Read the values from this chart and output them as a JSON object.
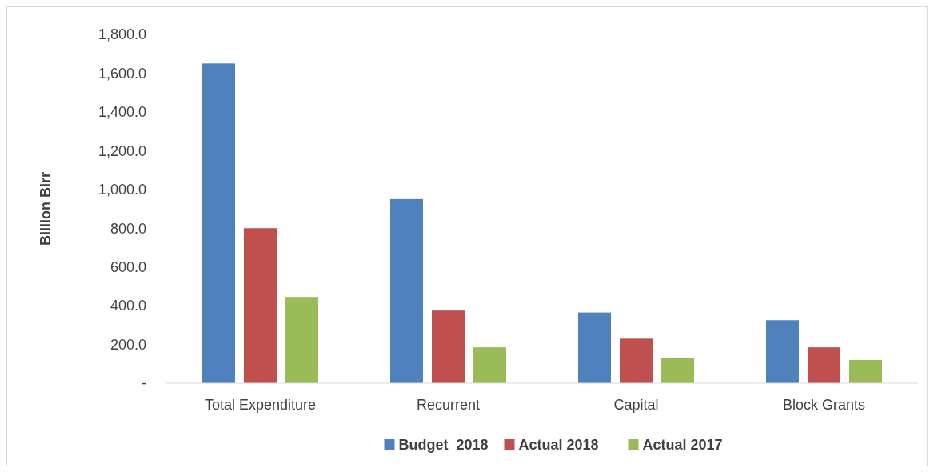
{
  "chart_data": {
    "type": "bar",
    "ylabel": "Billion Birr",
    "categories": [
      "Total Expenditure",
      "Recurrent",
      "Capital",
      "Block Grants"
    ],
    "series": [
      {
        "name": "Budget  2018",
        "color": "#4f81bd",
        "values": [
          1650,
          950,
          365,
          325
        ]
      },
      {
        "name": "Actual 2018",
        "color": "#c0504d",
        "values": [
          800,
          375,
          230,
          185
        ]
      },
      {
        "name": "Actual 2017",
        "color": "#9bbb59",
        "values": [
          445,
          185,
          130,
          120
        ]
      }
    ],
    "ylim": [
      0,
      1800
    ],
    "yticks": [
      {
        "value": 0,
        "label": "-"
      },
      {
        "value": 200,
        "label": "200.0"
      },
      {
        "value": 400,
        "label": "400.0"
      },
      {
        "value": 600,
        "label": "600.0"
      },
      {
        "value": 800,
        "label": "800.0"
      },
      {
        "value": 1000,
        "label": "1,000.0"
      },
      {
        "value": 1200,
        "label": "1,200.0"
      },
      {
        "value": 1400,
        "label": "1,400.0"
      },
      {
        "value": 1600,
        "label": "1,600.0"
      },
      {
        "value": 1800,
        "label": "1,800.0"
      }
    ],
    "grid": false,
    "legend": "bottom"
  }
}
